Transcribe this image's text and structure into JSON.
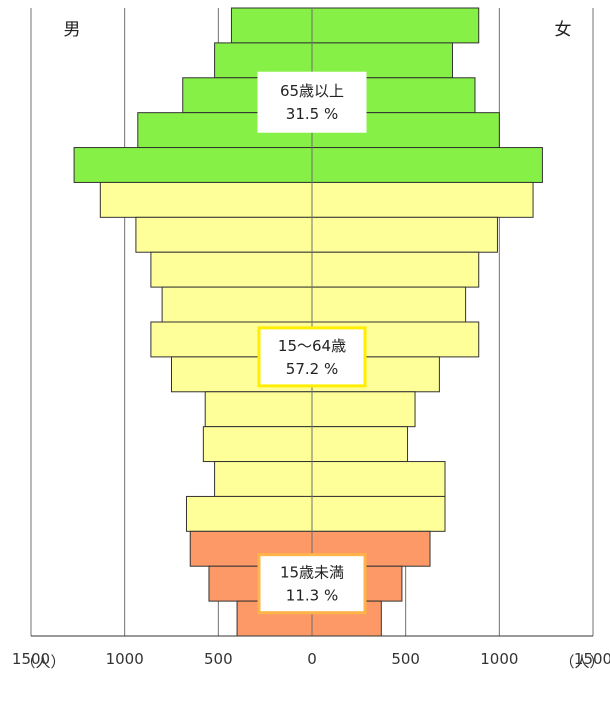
{
  "chart_data": {
    "type": "bar",
    "subtype": "population-pyramid",
    "left_label": "男",
    "right_label": "女",
    "x_ticks": [
      1500,
      1000,
      500,
      0,
      500,
      1000,
      1500
    ],
    "x_unit_left": "（人）",
    "x_unit_right": "（人）",
    "xlim": [
      -1500,
      1500
    ],
    "grid": "vertical",
    "rows_top_to_bottom": 18,
    "series": [
      {
        "name": "男",
        "values": [
          430,
          520,
          690,
          930,
          1270,
          1130,
          940,
          860,
          800,
          860,
          750,
          570,
          580,
          520,
          670,
          650,
          550,
          400
        ],
        "groups": [
          "65+",
          "65+",
          "65+",
          "65+",
          "65+",
          "15-64",
          "15-64",
          "15-64",
          "15-64",
          "15-64",
          "15-64",
          "15-64",
          "15-64",
          "15-64",
          "15-64",
          "<15",
          "<15",
          "<15"
        ]
      },
      {
        "name": "女",
        "values": [
          890,
          750,
          870,
          1000,
          1230,
          1180,
          990,
          890,
          820,
          890,
          680,
          550,
          510,
          710,
          710,
          630,
          480,
          370
        ],
        "groups": [
          "65+",
          "65+",
          "65+",
          "65+",
          "65+",
          "15-64",
          "15-64",
          "15-64",
          "15-64",
          "15-64",
          "15-64",
          "15-64",
          "15-64",
          "15-64",
          "15-64",
          "<15",
          "<15",
          "<15"
        ]
      }
    ],
    "group_labels": [
      {
        "key": "65+",
        "name": "65歳以上",
        "percent": "31.5 %",
        "border_color": "#ffffff"
      },
      {
        "key": "15-64",
        "name": "15～64歳",
        "percent": "57.2 %",
        "border_color": "#ffee00"
      },
      {
        "key": "<15",
        "name": "15歳未満",
        "percent": "11.3 %",
        "border_color": "#ffb449"
      }
    ],
    "colors": {
      "65+": "#86f046",
      "15-64": "#ffff99",
      "<15": "#fd9966",
      "grid": "#707070",
      "bar_stroke": "#333333"
    }
  }
}
